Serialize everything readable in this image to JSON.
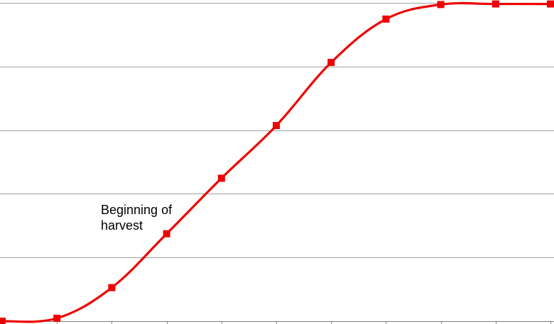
{
  "chart_data": {
    "type": "line",
    "title": "",
    "xlabel": "",
    "ylabel": "",
    "x": [
      0,
      1,
      2,
      3,
      4,
      5,
      6,
      7,
      8,
      9,
      10
    ],
    "series": [
      {
        "name": "",
        "color": "#ee0000",
        "marker": "square",
        "smooth": true,
        "values": [
          0.0,
          0.05,
          0.58,
          1.51,
          2.47,
          3.38,
          4.47,
          5.22,
          5.47,
          5.48,
          5.48
        ]
      }
    ],
    "xlim": [
      0,
      10
    ],
    "ylim": [
      0,
      5.5
    ],
    "y_gridlines": [
      0,
      1.1,
      2.2,
      3.3,
      4.4,
      5.5
    ],
    "grid": true,
    "tick_labels_visible": false,
    "annotations": [
      {
        "lines": [
          "Beginning of",
          "harvest"
        ]
      }
    ],
    "colors": {
      "line": "#ee0000",
      "marker": "#ee0000",
      "grid": "#a0a0a0",
      "axis": "#808080"
    }
  }
}
